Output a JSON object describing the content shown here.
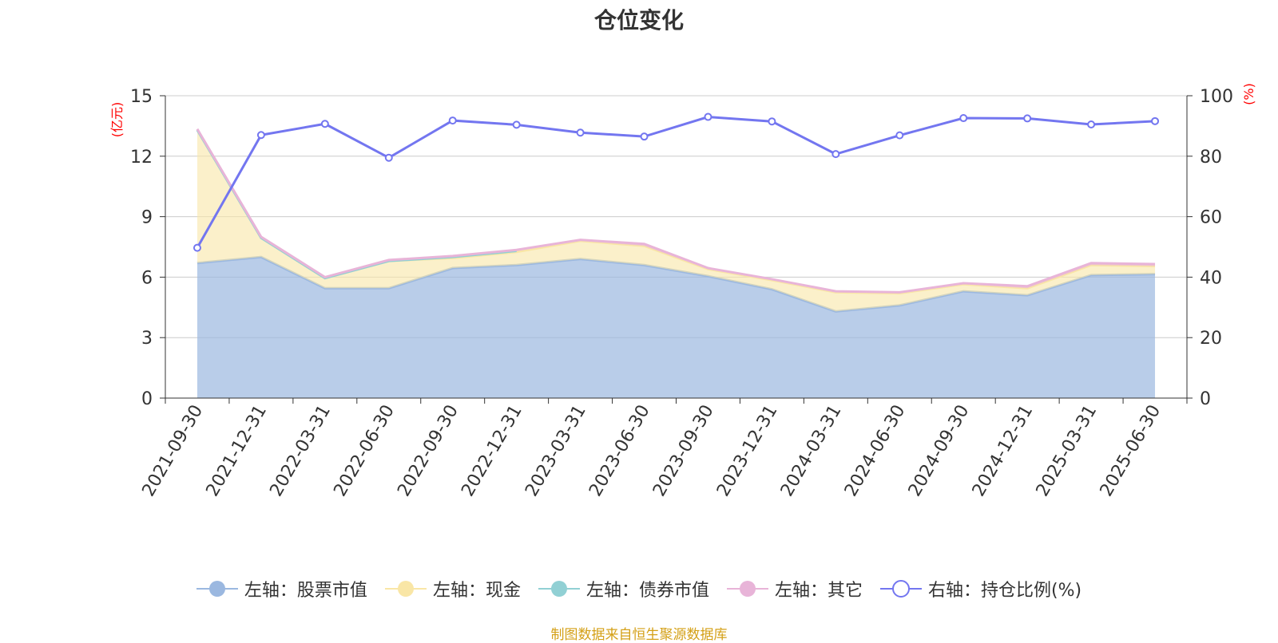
{
  "chart_data": {
    "type": "area",
    "title": "仓位变化",
    "categories": [
      "2021-09-30",
      "2021-12-31",
      "2022-03-31",
      "2022-06-30",
      "2022-09-30",
      "2022-12-31",
      "2023-03-31",
      "2023-06-30",
      "2023-09-30",
      "2023-12-31",
      "2024-03-31",
      "2024-06-30",
      "2024-09-30",
      "2024-12-31",
      "2025-03-31",
      "2025-06-30"
    ],
    "left_axis": {
      "unit": "(亿元)",
      "ylim": [
        0,
        15
      ],
      "ticks": [
        0,
        3,
        6,
        9,
        12,
        15
      ]
    },
    "right_axis": {
      "unit": "(%)",
      "ylim": [
        0,
        100
      ],
      "ticks": [
        0,
        20,
        40,
        60,
        80,
        100
      ]
    },
    "series": [
      {
        "name": "左轴：股票市值",
        "axis": "left",
        "type": "area",
        "color": "#9bb8e0",
        "values": [
          6.7,
          7.0,
          5.45,
          5.45,
          6.45,
          6.6,
          6.9,
          6.6,
          6.05,
          5.4,
          4.3,
          4.6,
          5.3,
          5.1,
          6.1,
          6.15
        ]
      },
      {
        "name": "左轴：现金",
        "axis": "left",
        "type": "area",
        "color": "#f9e6a6",
        "values": [
          6.6,
          0.95,
          0.5,
          1.35,
          0.5,
          0.65,
          0.9,
          0.95,
          0.35,
          0.45,
          0.95,
          0.6,
          0.35,
          0.35,
          0.5,
          0.4
        ]
      },
      {
        "name": "左轴：债券市值",
        "axis": "left",
        "type": "area",
        "color": "#91d0d4",
        "values": [
          0,
          0,
          0,
          0,
          0.05,
          0.05,
          null,
          null,
          null,
          null,
          null,
          null,
          null,
          null,
          null,
          null
        ]
      },
      {
        "name": "左轴：其它",
        "axis": "left",
        "type": "area",
        "color": "#e8b4d8",
        "values": [
          0.05,
          0.05,
          0.05,
          0.05,
          0.05,
          0.05,
          0.05,
          0.1,
          0.05,
          0.05,
          0.05,
          0.05,
          0.05,
          0.1,
          0.1,
          0.1
        ]
      },
      {
        "name": "右轴：持仓比例(%)",
        "axis": "right",
        "type": "line",
        "color": "#7376f0",
        "values": [
          49.7,
          87.0,
          90.7,
          79.5,
          91.8,
          90.4,
          87.8,
          86.5,
          93.0,
          91.5,
          80.7,
          86.9,
          92.6,
          92.5,
          90.5,
          91.6
        ]
      }
    ],
    "legend_position": "bottom-center",
    "grid": true
  },
  "source_text": "制图数据来自恒生聚源数据库"
}
